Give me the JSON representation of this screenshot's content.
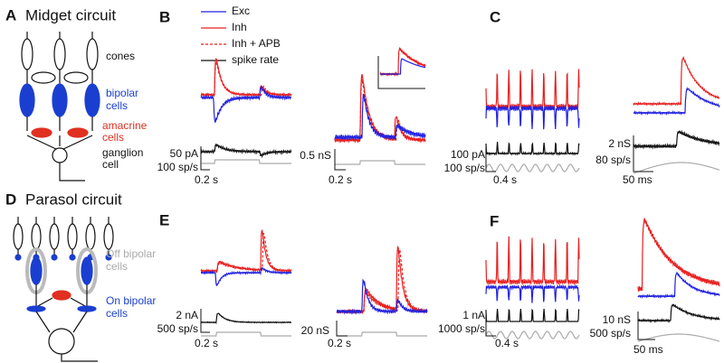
{
  "panels": [
    {
      "letter": "A",
      "title": "Midget circuit",
      "labels": [
        "cones",
        "bipolar",
        "cells",
        "amacrine",
        "cells",
        "ganglion",
        "cell"
      ]
    },
    {
      "letter": "B",
      "legend": [
        "Exc",
        "Inh",
        "Inh + APB",
        "spike rate"
      ],
      "scalebars": [
        "50 pA",
        "100 sp/s",
        "0.2 s",
        "0.5 nS",
        "0.2 s"
      ]
    },
    {
      "letter": "C",
      "scalebars": [
        "100 pA",
        "100 sp/s",
        "0.4 s",
        "2 nS",
        "80 sp/s",
        "50 ms"
      ]
    },
    {
      "letter": "D",
      "title": "Parasol circuit",
      "labels": [
        "Off bipolar",
        "cells",
        "On bipolar",
        "cells"
      ]
    },
    {
      "letter": "E",
      "scalebars": [
        "2 nA",
        "500 sp/s",
        "0.2 s",
        "20 nS",
        "0.2 s"
      ]
    },
    {
      "letter": "F",
      "scalebars": [
        "1 nA",
        "1000 sp/s",
        "0.4 s",
        "10 nS",
        "500 sp/s",
        "50 ms"
      ]
    }
  ]
}
